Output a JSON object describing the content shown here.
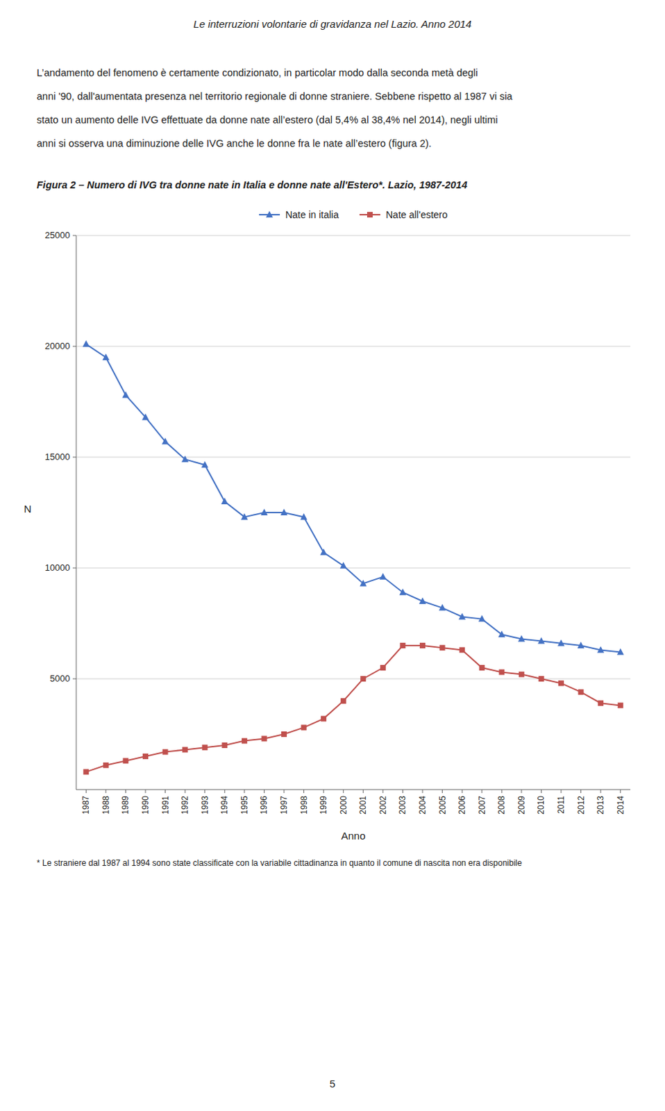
{
  "page": {
    "header": "Le interruzioni volontarie di gravidanza nel Lazio. Anno 2014",
    "paragraph": [
      "L’andamento del fenomeno è certamente condizionato, in particolar modo dalla seconda metà degli",
      "anni '90, dall'aumentata presenza nel territorio regionale di donne straniere. Sebbene rispetto al 1987 vi sia",
      "stato un aumento delle IVG effettuate da donne nate all’estero (dal 5,4% al 38,4% nel 2014), negli ultimi",
      "anni si osserva una diminuzione delle IVG anche le donne fra le nate all’estero (figura 2)."
    ],
    "footnote": "* Le straniere dal 1987 al 1994 sono state classificate con la variabile cittadinanza in quanto il comune di nascita non era disponibile",
    "page_number": "5"
  },
  "chart_data": {
    "type": "line",
    "title": "Figura 2 – Numero di IVG tra donne nate in Italia e donne nate all'Estero*. Lazio, 1987-2014",
    "x_label": "Anno",
    "y_label": "N",
    "x": [
      1987,
      1988,
      1989,
      1990,
      1991,
      1992,
      1993,
      1994,
      1995,
      1996,
      1997,
      1998,
      1999,
      2000,
      2001,
      2002,
      2003,
      2004,
      2005,
      2006,
      2007,
      2008,
      2009,
      2010,
      2011,
      2012,
      2013,
      2014
    ],
    "series": [
      {
        "name": "Nate in italia",
        "color": "#4472C4",
        "marker": "triangle",
        "values": [
          20100,
          19500,
          17800,
          16800,
          15700,
          14900,
          14650,
          13000,
          12300,
          12500,
          12500,
          12300,
          10700,
          10100,
          9300,
          9600,
          8900,
          8500,
          8200,
          7800,
          7700,
          7000,
          6800,
          6700,
          6600,
          6500,
          6300,
          6200
        ]
      },
      {
        "name": "Nate all'estero",
        "color": "#C0504D",
        "marker": "square",
        "values": [
          800,
          1100,
          1300,
          1500,
          1700,
          1800,
          1900,
          2000,
          2200,
          2300,
          2500,
          2800,
          3200,
          4000,
          5000,
          5500,
          6500,
          6500,
          6400,
          6300,
          5500,
          5300,
          5200,
          5000,
          4800,
          4400,
          3900,
          3800
        ]
      }
    ],
    "xlim": [
      1986.5,
      2014.5
    ],
    "xticks": [
      1987,
      1988,
      1989,
      1990,
      1991,
      1992,
      1993,
      1994,
      1995,
      1996,
      1997,
      1998,
      1999,
      2000,
      2001,
      2002,
      2003,
      2004,
      2005,
      2006,
      2007,
      2008,
      2009,
      2010,
      2011,
      2012,
      2013,
      2014
    ],
    "ylim": [
      0,
      25000
    ],
    "yticks": [
      5000,
      10000,
      15000,
      20000,
      25000
    ],
    "grid": true,
    "legend": "top"
  }
}
